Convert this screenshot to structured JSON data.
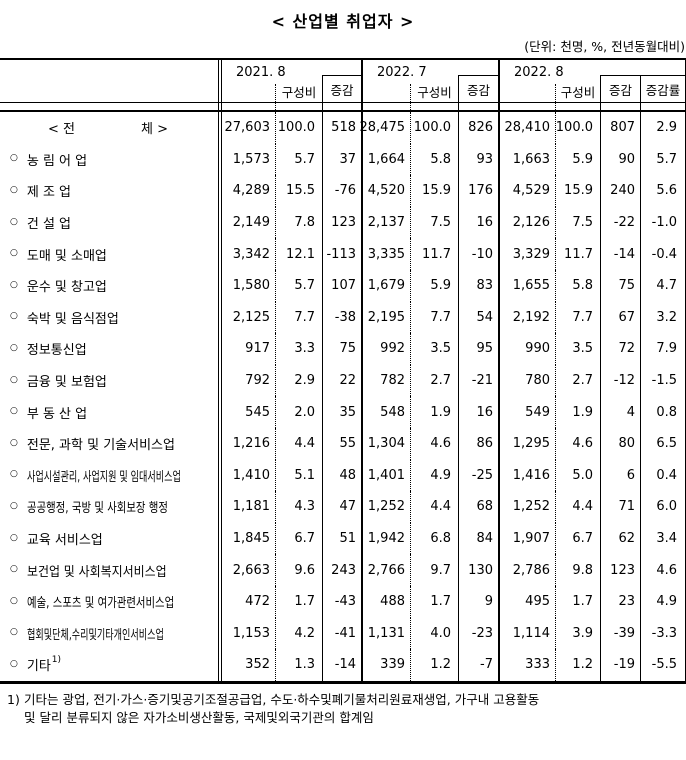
{
  "title": "< 산업별 취업자 >",
  "unit_note": "(단위: 천명, %, 전년동월대비)",
  "header": {
    "periods": [
      {
        "label": "2021. 8",
        "share_label": "구성비",
        "change_label": "증감"
      },
      {
        "label": "2022. 7",
        "share_label": "구성비",
        "change_label": "증감"
      },
      {
        "label": "2022. 8",
        "share_label": "구성비",
        "change_label": "증감",
        "rate_label": "증감률"
      }
    ]
  },
  "rows": [
    {
      "bullet": "",
      "label": "< 전                체 >",
      "values": [
        "27,603",
        "100.0",
        "518",
        "28,475",
        "100.0",
        "826",
        "28,410",
        "100.0",
        "807",
        "2.9"
      ]
    },
    {
      "bullet": "○",
      "label": "농 림 어 업",
      "values": [
        "1,573",
        "5.7",
        "37",
        "1,664",
        "5.8",
        "93",
        "1,663",
        "5.9",
        "90",
        "5.7"
      ]
    },
    {
      "bullet": "○",
      "label": "제 조 업",
      "values": [
        "4,289",
        "15.5",
        "-76",
        "4,520",
        "15.9",
        "176",
        "4,529",
        "15.9",
        "240",
        "5.6"
      ]
    },
    {
      "bullet": "○",
      "label": "건 설 업",
      "values": [
        "2,149",
        "7.8",
        "123",
        "2,137",
        "7.5",
        "16",
        "2,126",
        "7.5",
        "-22",
        "-1.0"
      ]
    },
    {
      "bullet": "○",
      "label": "도매 및 소매업",
      "values": [
        "3,342",
        "12.1",
        "-113",
        "3,335",
        "11.7",
        "-10",
        "3,329",
        "11.7",
        "-14",
        "-0.4"
      ]
    },
    {
      "bullet": "○",
      "label": "운수 및 창고업",
      "values": [
        "1,580",
        "5.7",
        "107",
        "1,679",
        "5.9",
        "83",
        "1,655",
        "5.8",
        "75",
        "4.7"
      ]
    },
    {
      "bullet": "○",
      "label": "숙박 및 음식점업",
      "values": [
        "2,125",
        "7.7",
        "-38",
        "2,195",
        "7.7",
        "54",
        "2,192",
        "7.7",
        "67",
        "3.2"
      ]
    },
    {
      "bullet": "○",
      "label": "정보통신업",
      "values": [
        "917",
        "3.3",
        "75",
        "992",
        "3.5",
        "95",
        "990",
        "3.5",
        "72",
        "7.9"
      ]
    },
    {
      "bullet": "○",
      "label": "금융 및 보험업",
      "values": [
        "792",
        "2.9",
        "22",
        "782",
        "2.7",
        "-21",
        "780",
        "2.7",
        "-12",
        "-1.5"
      ]
    },
    {
      "bullet": "○",
      "label": "부 동 산 업",
      "values": [
        "545",
        "2.0",
        "35",
        "548",
        "1.9",
        "16",
        "549",
        "1.9",
        "4",
        "0.8"
      ]
    },
    {
      "bullet": "○",
      "label": "전문, 과학 및 기술서비스업",
      "values": [
        "1,216",
        "4.4",
        "55",
        "1,304",
        "4.6",
        "86",
        "1,295",
        "4.6",
        "80",
        "6.5"
      ]
    },
    {
      "bullet": "○",
      "label": "사업시설관리, 사업지원 및 임대서비스업",
      "values": [
        "1,410",
        "5.1",
        "48",
        "1,401",
        "4.9",
        "-25",
        "1,416",
        "5.0",
        "6",
        "0.4"
      ]
    },
    {
      "bullet": "○",
      "label": "공공행정, 국방 및 사회보장 행정",
      "values": [
        "1,181",
        "4.3",
        "47",
        "1,252",
        "4.4",
        "68",
        "1,252",
        "4.4",
        "71",
        "6.0"
      ]
    },
    {
      "bullet": "○",
      "label": "교육 서비스업",
      "values": [
        "1,845",
        "6.7",
        "51",
        "1,942",
        "6.8",
        "84",
        "1,907",
        "6.7",
        "62",
        "3.4"
      ]
    },
    {
      "bullet": "○",
      "label": "보건업 및 사회복지서비스업",
      "values": [
        "2,663",
        "9.6",
        "243",
        "2,766",
        "9.7",
        "130",
        "2,786",
        "9.8",
        "123",
        "4.6"
      ]
    },
    {
      "bullet": "○",
      "label": "예술, 스포츠 및 여가관련서비스업",
      "values": [
        "472",
        "1.7",
        "-43",
        "488",
        "1.7",
        "9",
        "495",
        "1.7",
        "23",
        "4.9"
      ]
    },
    {
      "bullet": "○",
      "label": "협회및단체,수리및기타개인서비스업",
      "values": [
        "1,153",
        "4.2",
        "-41",
        "1,131",
        "4.0",
        "-23",
        "1,114",
        "3.9",
        "-39",
        "-3.3"
      ]
    },
    {
      "bullet": "○",
      "label": "기타",
      "sup": "1)",
      "values": [
        "352",
        "1.3",
        "-14",
        "339",
        "1.2",
        "-7",
        "333",
        "1.2",
        "-19",
        "-5.5"
      ]
    }
  ],
  "footnote": {
    "marker": "1)",
    "lines": [
      "기타는 광업, 전기·가스·증기및공기조절공급업, 수도·하수및폐기물처리원료재생업, 가구내 고용활동",
      "및 달리 분류되지 않은 자가소비생산활동, 국제및외국기관의 합계임"
    ]
  }
}
